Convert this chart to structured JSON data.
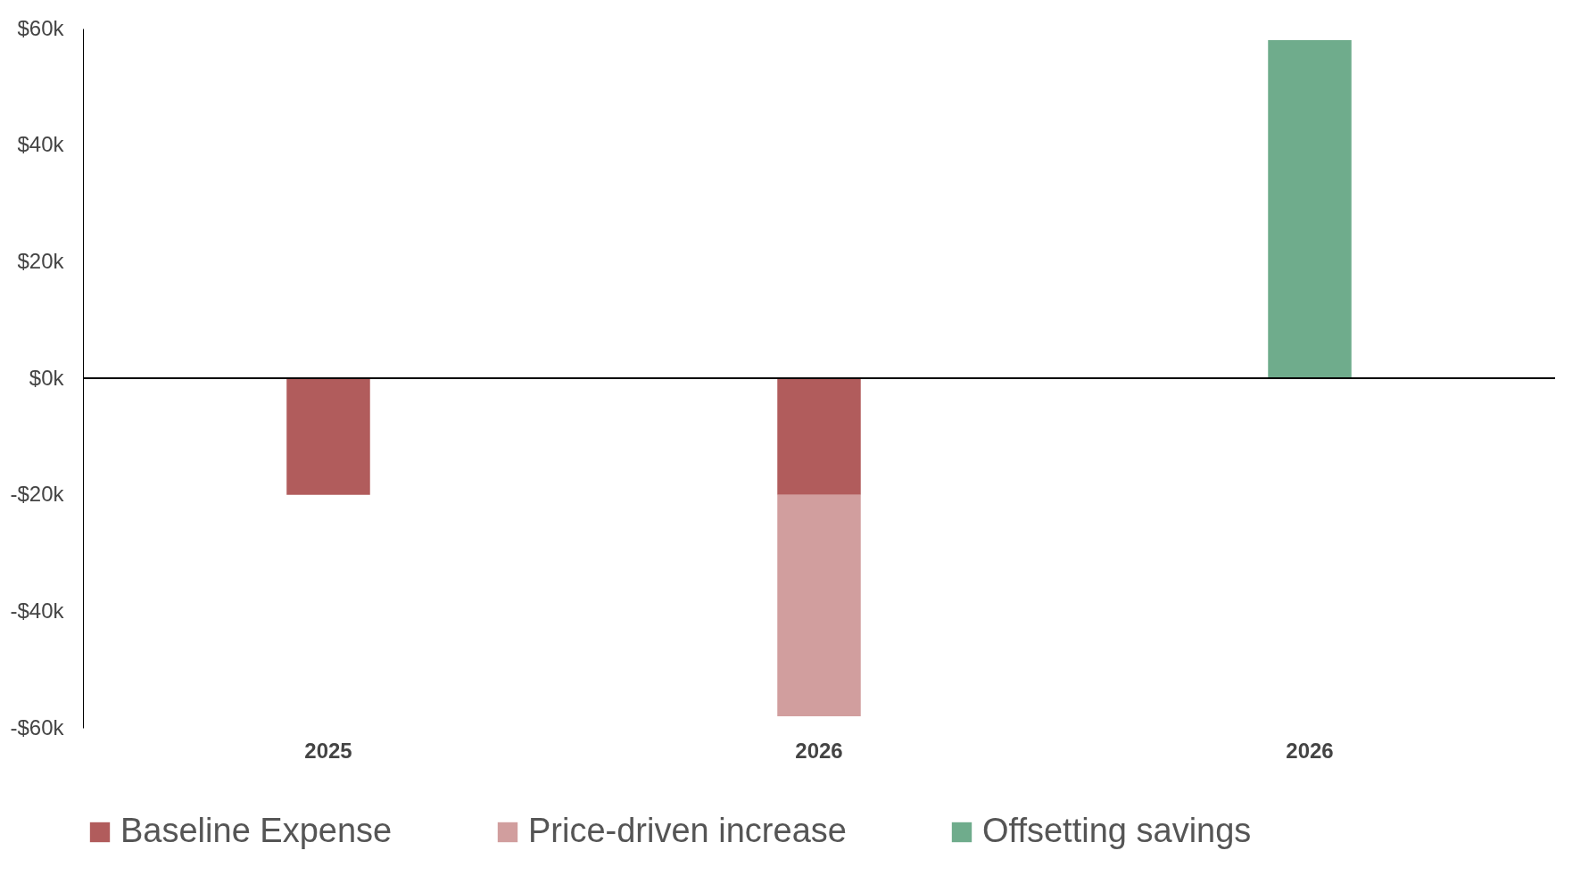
{
  "chart_data": {
    "type": "bar",
    "stacked": true,
    "categories": [
      "2025",
      "2026",
      "2026"
    ],
    "series": [
      {
        "name": "Baseline Expense",
        "color": "#a84a4a",
        "values": [
          -20,
          -20,
          null
        ]
      },
      {
        "name": "Price-driven increase",
        "color": "#cc9494",
        "values": [
          null,
          -38,
          null
        ]
      },
      {
        "name": "Offsetting savings",
        "color": "#5fa37f",
        "values": [
          null,
          null,
          58
        ]
      }
    ],
    "ylim": [
      -60,
      60
    ],
    "yticks": [
      {
        "value": -60,
        "label": "-$60k"
      },
      {
        "value": -40,
        "label": "-$40k"
      },
      {
        "value": -20,
        "label": "-$20k"
      },
      {
        "value": 0,
        "label": "$0k"
      },
      {
        "value": 20,
        "label": "$20k"
      },
      {
        "value": 40,
        "label": "$40k"
      },
      {
        "value": 60,
        "label": "$60k"
      }
    ],
    "ref_lines": [
      {
        "axis": "y",
        "value": 0,
        "color": "#000000"
      }
    ],
    "grid": false,
    "legend": "bottom"
  }
}
